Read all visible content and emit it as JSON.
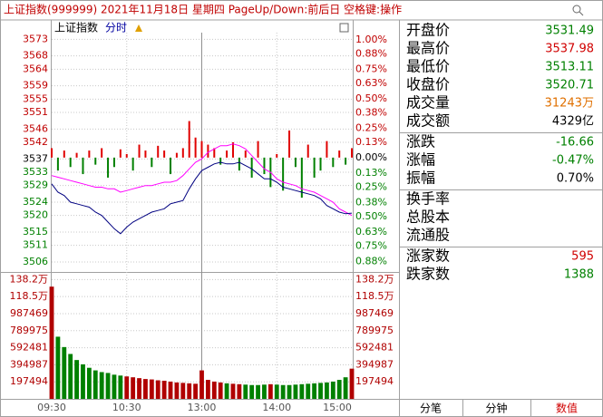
{
  "title_bar": {
    "text": "上证指数(999999) 2021年11月18日 星期四 PageUp/Down:前后日 空格键:操作"
  },
  "chart_data": [
    {
      "type": "line",
      "title": "上证指数",
      "subtitle": "分时",
      "ylim": [
        3503,
        3575
      ],
      "yticks": [
        3573,
        3568,
        3564,
        3559,
        3555,
        3551,
        3546,
        3542,
        3537,
        3533,
        3529,
        3524,
        3520,
        3515,
        3511,
        3506
      ],
      "y2lim": [
        -0.97,
        1.06
      ],
      "y2ticks": [
        {
          "value": 1.0,
          "label": "1.00%"
        },
        {
          "value": 0.88,
          "label": "0.88%"
        },
        {
          "value": 0.75,
          "label": "0.75%"
        },
        {
          "value": 0.63,
          "label": "0.63%"
        },
        {
          "value": 0.5,
          "label": "0.50%"
        },
        {
          "value": 0.38,
          "label": "0.38%"
        },
        {
          "value": 0.25,
          "label": "0.25%"
        },
        {
          "value": 0.13,
          "label": "0.13%"
        },
        {
          "value": 0,
          "label": "0.00%"
        },
        {
          "value": -0.13,
          "label": "0.13%"
        },
        {
          "value": -0.25,
          "label": "0.25%"
        },
        {
          "value": -0.38,
          "label": "0.38%"
        },
        {
          "value": -0.5,
          "label": "0.50%"
        },
        {
          "value": -0.63,
          "label": "0.63%"
        },
        {
          "value": -0.75,
          "label": "0.75%"
        },
        {
          "value": -0.88,
          "label": "0.88%"
        }
      ],
      "grid": true,
      "series": [
        {
          "color": "#000080",
          "values": [
            3529.5,
            3527,
            3526,
            3524,
            3523.5,
            3523,
            3522.5,
            3521,
            3520,
            3518,
            3516,
            3514.5,
            3516.5,
            3518,
            3519,
            3520,
            3521,
            3521.5,
            3522,
            3523.5,
            3524,
            3524.5,
            3528,
            3531,
            3533.5,
            3534.5,
            3535.5,
            3536,
            3535.5,
            3535.5,
            3536,
            3535,
            3534,
            3532.5,
            3531,
            3531,
            3530,
            3528.5,
            3528,
            3527.5,
            3527,
            3526.5,
            3526,
            3525,
            3523,
            3522,
            3521,
            3520.5,
            3520.71
          ]
        },
        {
          "color": "#ff00ff",
          "values": [
            3532,
            3531.5,
            3531,
            3530.5,
            3530,
            3529.5,
            3529,
            3528.5,
            3528.5,
            3528,
            3528,
            3527,
            3527.5,
            3528,
            3528.5,
            3529,
            3529,
            3529.5,
            3530,
            3530,
            3530.5,
            3532,
            3534,
            3536,
            3537,
            3539,
            3540,
            3541,
            3541,
            3541.5,
            3541,
            3540,
            3538,
            3536,
            3534,
            3533,
            3531,
            3530,
            3529.5,
            3529,
            3528,
            3527.5,
            3527,
            3526,
            3525,
            3524,
            3522,
            3521,
            3520
          ]
        },
        {
          "type": "bar",
          "axis": "y2",
          "color": "#e00000",
          "negative_color": "#008000",
          "values": [
            0.08,
            -0.11,
            0.06,
            -0.08,
            0.04,
            -0.14,
            0.06,
            -0.06,
            0.08,
            -0.17,
            -0.08,
            0.07,
            0.03,
            -0.11,
            0.11,
            0.06,
            -0.08,
            0.1,
            0.06,
            -0.14,
            0.04,
            0.08,
            0.31,
            0.17,
            0.14,
            0.11,
            0.08,
            -0.06,
            0.06,
            0.13,
            -0.11,
            0.06,
            -0.17,
            0.14,
            -0.14,
            -0.25,
            0.03,
            -0.28,
            0.23,
            -0.08,
            -0.34,
            0.11,
            -0.17,
            -0.11,
            0.14,
            -0.08,
            0.06,
            -0.06,
            0.08
          ]
        }
      ]
    },
    {
      "type": "bar",
      "categories": [
        "09:30",
        null,
        null,
        null,
        null,
        null,
        null,
        null,
        null,
        null,
        null,
        null,
        "10:30",
        null,
        null,
        null,
        null,
        null,
        null,
        null,
        null,
        null,
        null,
        null,
        "13:00",
        null,
        null,
        null,
        null,
        null,
        null,
        null,
        null,
        null,
        null,
        null,
        "14:00",
        null,
        null,
        null,
        null,
        null,
        null,
        null,
        null,
        null,
        null,
        null,
        "15:00"
      ],
      "values": [
        1300000,
        720000,
        600000,
        520000,
        450000,
        400000,
        360000,
        330000,
        310000,
        300000,
        280000,
        270000,
        260000,
        250000,
        240000,
        230000,
        225000,
        215000,
        210000,
        200000,
        190000,
        185000,
        180000,
        175000,
        330000,
        220000,
        200000,
        190000,
        180000,
        175000,
        170000,
        165000,
        160000,
        160000,
        165000,
        170000,
        165000,
        160000,
        160000,
        165000,
        170000,
        175000,
        180000,
        185000,
        190000,
        200000,
        220000,
        250000,
        350000
      ],
      "color": "#b00000",
      "negative_color": "#008000",
      "ylim": [
        0,
        1470000
      ],
      "yticks": [
        197494,
        394987,
        592481,
        789975,
        987469,
        {
          "value": 1184963,
          "label": "118.5万"
        },
        {
          "value": 1382457,
          "label": "138.2万"
        }
      ],
      "grid": true
    }
  ],
  "quote_panel": {
    "groups": [
      [
        {
          "label": "开盘价",
          "value": "3531.49",
          "color": "#008000"
        },
        {
          "label": "最高价",
          "value": "3537.98",
          "color": "#d00000"
        },
        {
          "label": "最低价",
          "value": "3513.11",
          "color": "#008000"
        },
        {
          "label": "收盘价",
          "value": "3520.71",
          "color": "#008000"
        },
        {
          "label": "成交量",
          "value": "31243万",
          "color": "#e07000"
        },
        {
          "label": "成交额",
          "value": "4329亿",
          "color": "#000000"
        }
      ],
      [
        {
          "label": "涨跌",
          "value": "-16.66",
          "color": "#008000"
        },
        {
          "label": "涨幅",
          "value": "-0.47%",
          "color": "#008000"
        },
        {
          "label": "振幅",
          "value": "0.70%",
          "color": "#000000"
        }
      ],
      [
        {
          "label": "换手率"
        },
        {
          "label": "总股本"
        },
        {
          "label": "流通股"
        }
      ],
      [
        {
          "label": "涨家数",
          "value": "595",
          "color": "#d00000"
        },
        {
          "label": "跌家数",
          "value": "1388",
          "color": "#008000"
        }
      ]
    ]
  },
  "tabs": {
    "items": [
      "分笔",
      "分钟",
      "数值"
    ],
    "active": 2
  }
}
